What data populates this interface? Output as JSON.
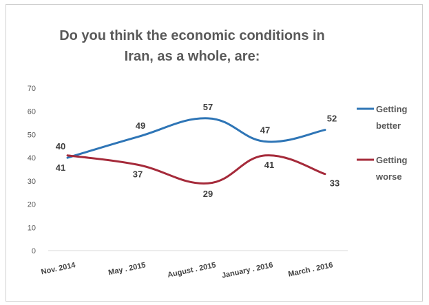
{
  "chart_data": {
    "type": "line",
    "title": "Do you think the economic conditions in Iran, as a whole, are:",
    "categories": [
      "Nov. 2014",
      "May . 2015",
      "August . 2015",
      "January . 2016",
      "March . 2016"
    ],
    "ylim": [
      0,
      70
    ],
    "yticks": [
      0,
      10,
      20,
      30,
      40,
      50,
      60,
      70
    ],
    "grid": false,
    "legend_position": "right",
    "series": [
      {
        "name": "Getting better",
        "legend_lines": [
          "Getting",
          "better"
        ],
        "values": [
          40,
          49,
          57,
          47,
          52
        ],
        "color": "#2e75b6"
      },
      {
        "name": "Getting worse",
        "legend_lines": [
          "Getting",
          "worse"
        ],
        "values": [
          41,
          37,
          29,
          41,
          33
        ],
        "color": "#a52a3a"
      }
    ]
  }
}
